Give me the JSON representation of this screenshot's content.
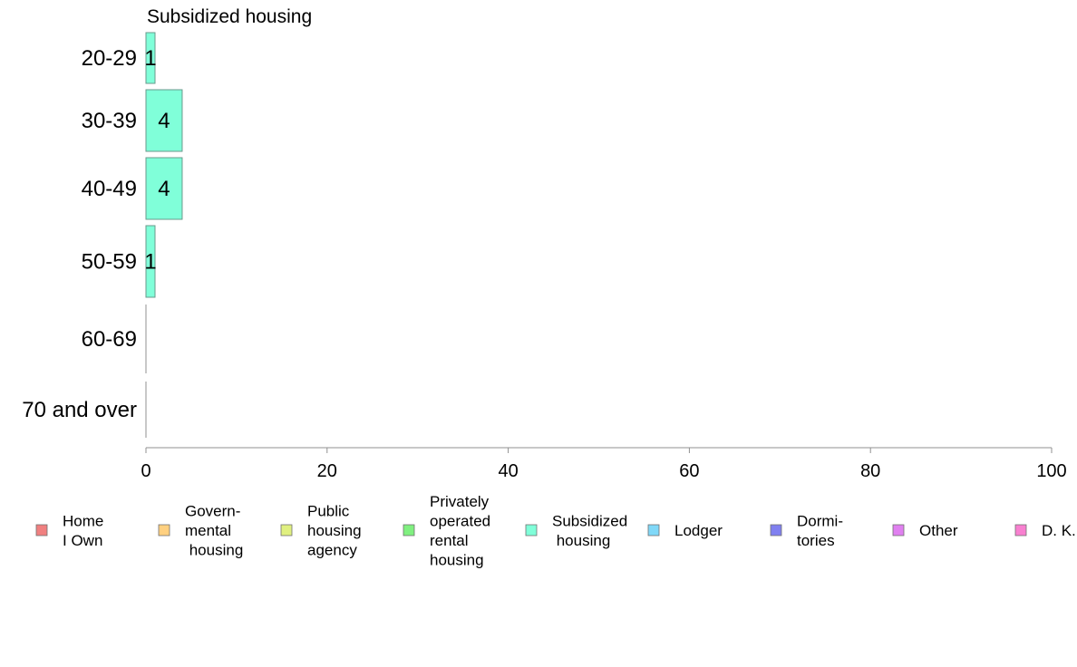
{
  "chart_data": {
    "type": "bar",
    "orientation": "horizontal",
    "title": "Subsidized housing",
    "categories": [
      "20-29",
      "30-39",
      "40-49",
      "50-59",
      "60-69",
      "70 and over"
    ],
    "series": [
      {
        "name": "Subsidized housing",
        "values": [
          1,
          4,
          4,
          1,
          0,
          0
        ],
        "color": "#80ffd9"
      }
    ],
    "data_labels": [
      "1",
      "4",
      "4",
      "1",
      "",
      ""
    ],
    "xlim": [
      0,
      100
    ],
    "xticks": [
      "0",
      "20",
      "40",
      "60",
      "80",
      "100"
    ],
    "xlabel": "",
    "ylabel": "",
    "grid": false,
    "legend_position": "bottom",
    "legend": [
      {
        "lines": [
          "Home",
          "I Own"
        ],
        "color": "#f08080"
      },
      {
        "lines": [
          "Govern-",
          "mental",
          " housing"
        ],
        "color": "#ffd080"
      },
      {
        "lines": [
          "Public",
          "housing",
          "agency"
        ],
        "color": "#e0f080"
      },
      {
        "lines": [
          "Privately",
          "operated",
          "rental",
          "housing"
        ],
        "color": "#80f080"
      },
      {
        "lines": [
          "Subsidized",
          " housing"
        ],
        "color": "#80ffd9"
      },
      {
        "lines": [
          "Lodger"
        ],
        "color": "#80d8f8"
      },
      {
        "lines": [
          "Dormi-",
          "tories"
        ],
        "color": "#8080f0"
      },
      {
        "lines": [
          "Other"
        ],
        "color": "#e080f0"
      },
      {
        "lines": [
          "D. K."
        ],
        "color": "#f880d0"
      }
    ]
  }
}
